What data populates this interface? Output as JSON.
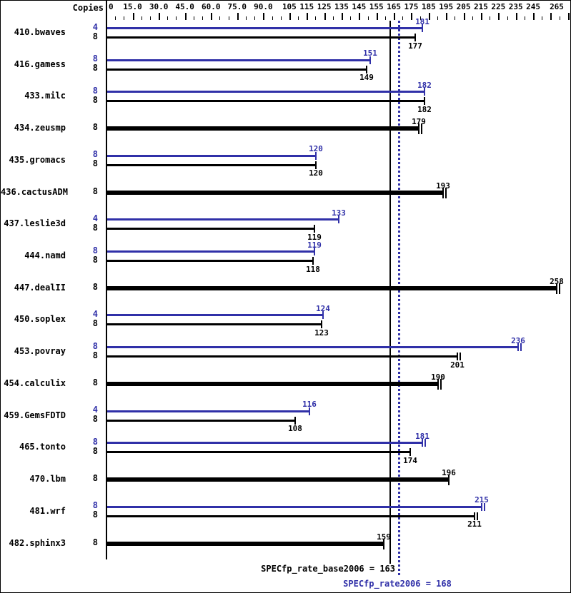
{
  "header": {
    "copies_label": "Copies"
  },
  "colors": {
    "peak_blue": "#3030a8",
    "base_black": "#000000",
    "background": "#ffffff"
  },
  "summary": {
    "base_text": "SPECfp_rate_base2006 = 163",
    "peak_text": "SPECfp_rate2006 = 168",
    "base_value": 163,
    "peak_value": 168
  },
  "chart_data": {
    "type": "bar",
    "orientation": "horizontal",
    "title": "",
    "xlabel": "",
    "ylabel": "Copies",
    "x_range": [
      0,
      265
    ],
    "grid": false,
    "legend_position": "none",
    "axis_labels": [
      {
        "value": 0,
        "text": "0"
      },
      {
        "value": 15,
        "text": "15.0"
      },
      {
        "value": 30,
        "text": "30.0"
      },
      {
        "value": 45,
        "text": "45.0"
      },
      {
        "value": 60,
        "text": "60.0"
      },
      {
        "value": 75,
        "text": "75.0"
      },
      {
        "value": 90,
        "text": "90.0"
      },
      {
        "value": 105,
        "text": "105"
      },
      {
        "value": 115,
        "text": "115"
      },
      {
        "value": 125,
        "text": "125"
      },
      {
        "value": 135,
        "text": "135"
      },
      {
        "value": 145,
        "text": "145"
      },
      {
        "value": 155,
        "text": "155"
      },
      {
        "value": 165,
        "text": "165"
      },
      {
        "value": 175,
        "text": "175"
      },
      {
        "value": 185,
        "text": "185"
      },
      {
        "value": 195,
        "text": "195"
      },
      {
        "value": 205,
        "text": "205"
      },
      {
        "value": 215,
        "text": "215"
      },
      {
        "value": 225,
        "text": "225"
      },
      {
        "value": 235,
        "text": "235"
      },
      {
        "value": 245,
        "text": "245"
      },
      {
        "value": 265,
        "text": "265"
      }
    ],
    "tick_step": 5,
    "reference_lines": [
      {
        "name": "SPECfp_rate_base2006",
        "value": 163,
        "style": "solid",
        "color": "base"
      },
      {
        "name": "SPECfp_rate2006",
        "value": 168,
        "style": "dotted",
        "color": "peak"
      }
    ],
    "benchmarks": [
      {
        "name": "410.bwaves",
        "bars": [
          {
            "series": "peak",
            "copies": 4,
            "value": 181,
            "end_ticks": 1
          },
          {
            "series": "base",
            "copies": 8,
            "value": 177,
            "end_ticks": 1
          }
        ]
      },
      {
        "name": "416.gamess",
        "bars": [
          {
            "series": "peak",
            "copies": 8,
            "value": 151,
            "end_ticks": 1
          },
          {
            "series": "base",
            "copies": 8,
            "value": 149,
            "end_ticks": 1
          }
        ]
      },
      {
        "name": "433.milc",
        "bars": [
          {
            "series": "peak",
            "copies": 8,
            "value": 182,
            "end_ticks": 1
          },
          {
            "series": "base",
            "copies": 8,
            "value": 182,
            "end_ticks": 1
          }
        ]
      },
      {
        "name": "434.zeusmp",
        "bars": [
          {
            "series": "base",
            "copies": 8,
            "value": 179,
            "end_ticks": 2
          }
        ]
      },
      {
        "name": "435.gromacs",
        "bars": [
          {
            "series": "peak",
            "copies": 8,
            "value": 120,
            "end_ticks": 1
          },
          {
            "series": "base",
            "copies": 8,
            "value": 120,
            "end_ticks": 1
          }
        ]
      },
      {
        "name": "436.cactusADM",
        "bars": [
          {
            "series": "base",
            "copies": 8,
            "value": 193,
            "end_ticks": 2
          }
        ]
      },
      {
        "name": "437.leslie3d",
        "bars": [
          {
            "series": "peak",
            "copies": 4,
            "value": 133,
            "end_ticks": 1
          },
          {
            "series": "base",
            "copies": 8,
            "value": 119,
            "end_ticks": 1
          }
        ]
      },
      {
        "name": "444.namd",
        "bars": [
          {
            "series": "peak",
            "copies": 8,
            "value": 119,
            "end_ticks": 1
          },
          {
            "series": "base",
            "copies": 8,
            "value": 118,
            "end_ticks": 1
          }
        ]
      },
      {
        "name": "447.dealII",
        "bars": [
          {
            "series": "base",
            "copies": 8,
            "value": 258,
            "end_ticks": 2
          }
        ]
      },
      {
        "name": "450.soplex",
        "bars": [
          {
            "series": "peak",
            "copies": 4,
            "value": 124,
            "end_ticks": 1
          },
          {
            "series": "base",
            "copies": 8,
            "value": 123,
            "end_ticks": 1
          }
        ]
      },
      {
        "name": "453.povray",
        "bars": [
          {
            "series": "peak",
            "copies": 8,
            "value": 236,
            "end_ticks": 2
          },
          {
            "series": "base",
            "copies": 8,
            "value": 201,
            "end_ticks": 2
          }
        ]
      },
      {
        "name": "454.calculix",
        "bars": [
          {
            "series": "base",
            "copies": 8,
            "value": 190,
            "end_ticks": 2
          }
        ]
      },
      {
        "name": "459.GemsFDTD",
        "bars": [
          {
            "series": "peak",
            "copies": 4,
            "value": 116,
            "end_ticks": 1
          },
          {
            "series": "base",
            "copies": 8,
            "value": 108,
            "end_ticks": 1
          }
        ]
      },
      {
        "name": "465.tonto",
        "bars": [
          {
            "series": "peak",
            "copies": 8,
            "value": 181,
            "end_ticks": 2
          },
          {
            "series": "base",
            "copies": 8,
            "value": 174,
            "end_ticks": 1
          }
        ]
      },
      {
        "name": "470.lbm",
        "bars": [
          {
            "series": "base",
            "copies": 8,
            "value": 196,
            "end_ticks": 1
          }
        ]
      },
      {
        "name": "481.wrf",
        "bars": [
          {
            "series": "peak",
            "copies": 8,
            "value": 215,
            "end_ticks": 2
          },
          {
            "series": "base",
            "copies": 8,
            "value": 211,
            "end_ticks": 2
          }
        ]
      },
      {
        "name": "482.sphinx3",
        "bars": [
          {
            "series": "base",
            "copies": 8,
            "value": 159,
            "end_ticks": 1
          }
        ]
      }
    ]
  }
}
